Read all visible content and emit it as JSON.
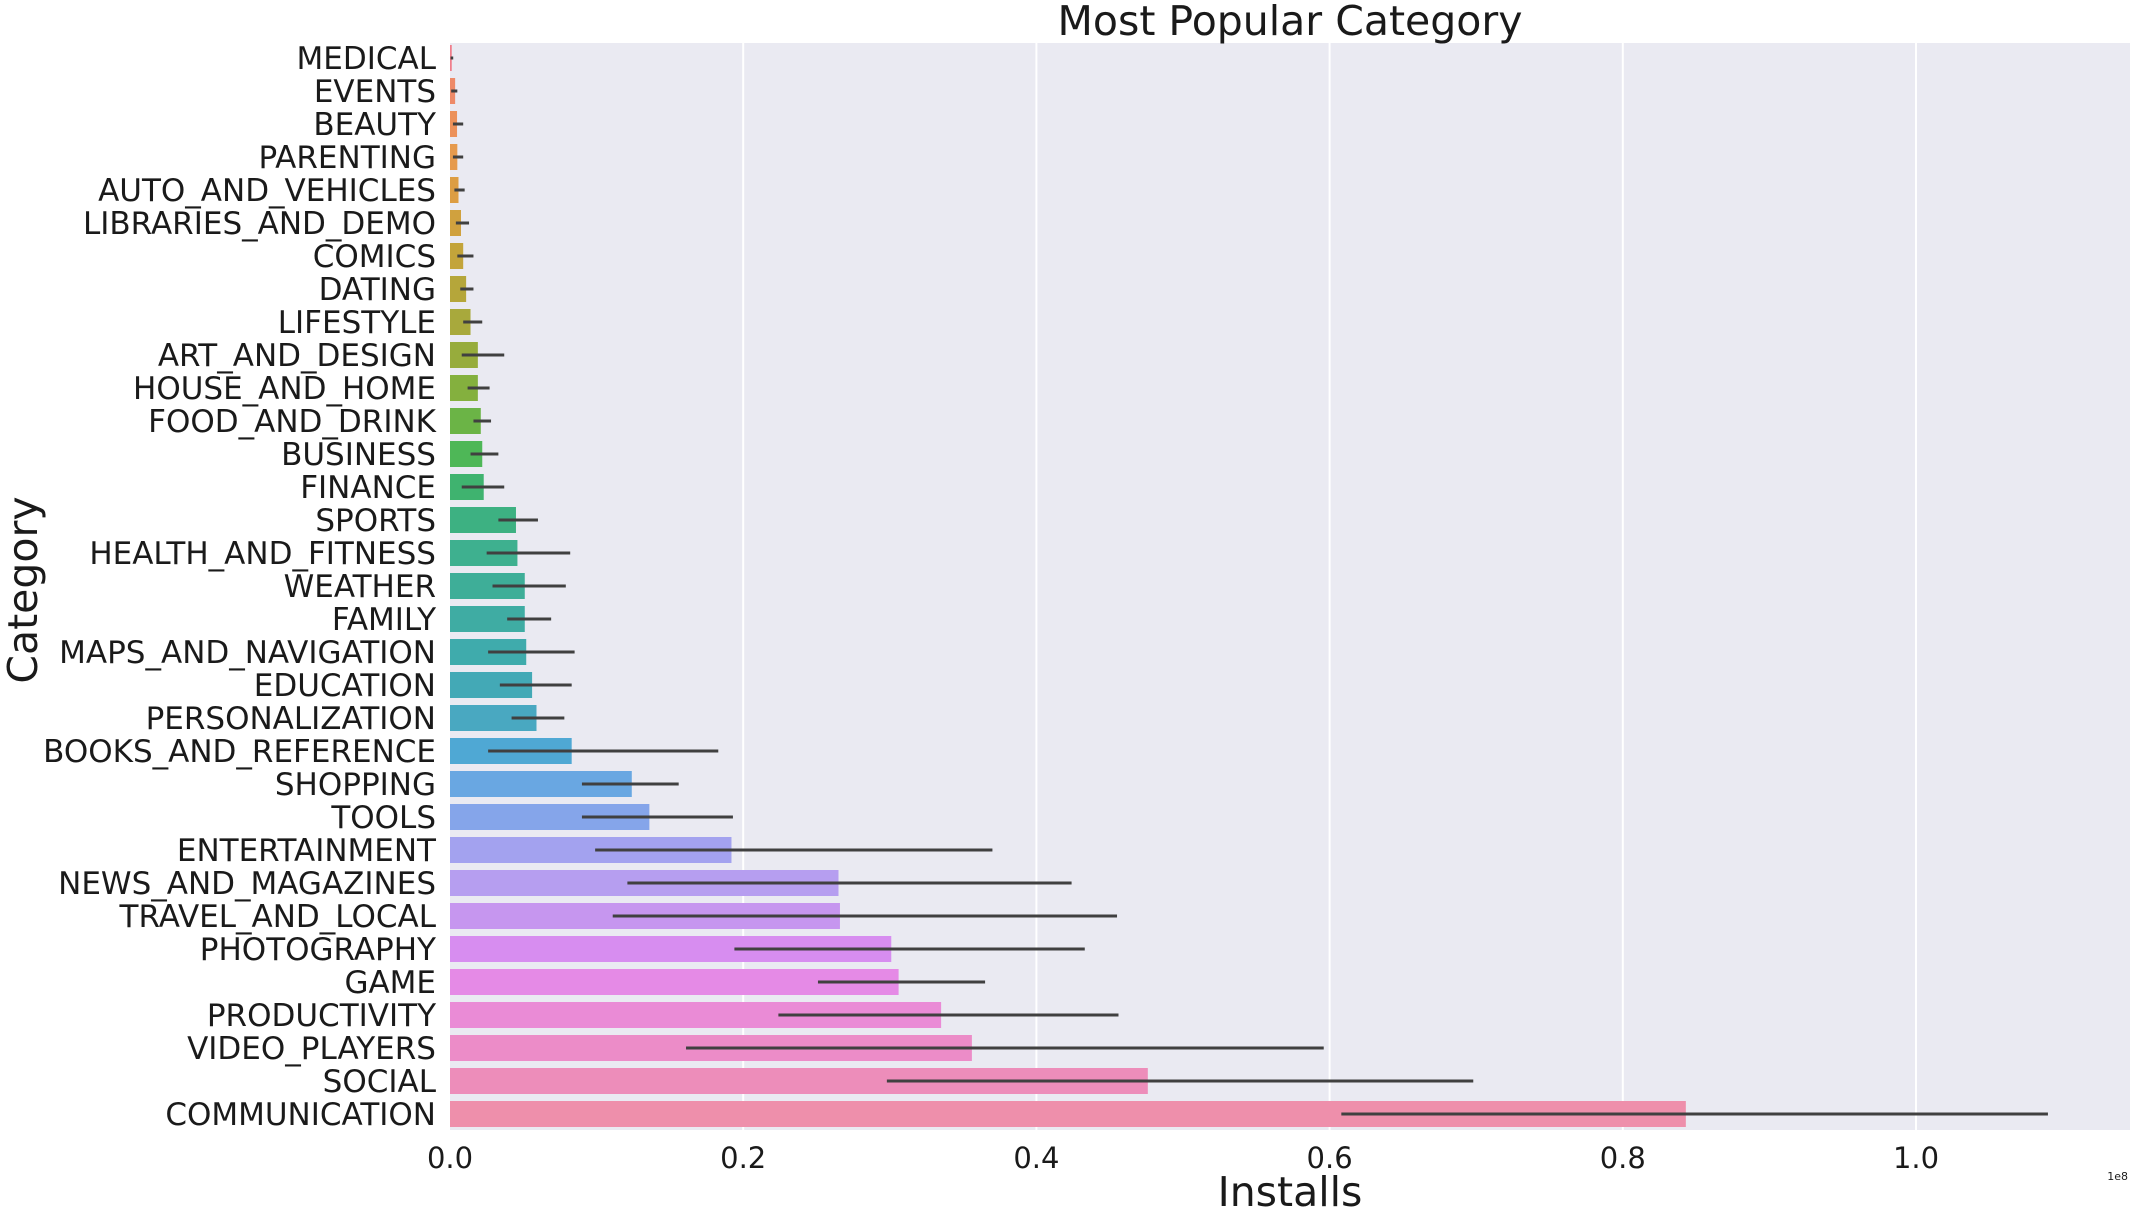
{
  "chart_data": {
    "type": "bar",
    "orientation": "horizontal",
    "title": "Most Popular Category",
    "xlabel": "Installs",
    "ylabel": "Category",
    "x_scale_note": "1e8",
    "xlim": [
      0,
      1.14
    ],
    "xticks": [
      0.0,
      0.2,
      0.4,
      0.6,
      0.8,
      1.0
    ],
    "xtick_labels": [
      "0.0",
      "0.2",
      "0.4",
      "0.6",
      "0.8",
      "1.0"
    ],
    "grid": true,
    "categories": [
      "MEDICAL",
      "EVENTS",
      "BEAUTY",
      "PARENTING",
      "AUTO_AND_VEHICLES",
      "LIBRARIES_AND_DEMO",
      "COMICS",
      "DATING",
      "LIFESTYLE",
      "ART_AND_DESIGN",
      "HOUSE_AND_HOME",
      "FOOD_AND_DRINK",
      "BUSINESS",
      "FINANCE",
      "SPORTS",
      "HEALTH_AND_FITNESS",
      "WEATHER",
      "FAMILY",
      "MAPS_AND_NAVIGATION",
      "EDUCATION",
      "PERSONALIZATION",
      "BOOKS_AND_REFERENCE",
      "SHOPPING",
      "TOOLS",
      "ENTERTAINMENT",
      "NEWS_AND_MAGAZINES",
      "TRAVEL_AND_LOCAL",
      "PHOTOGRAPHY",
      "GAME",
      "PRODUCTIVITY",
      "VIDEO_PLAYERS",
      "SOCIAL",
      "COMMUNICATION"
    ],
    "values": [
      0.0012,
      0.0035,
      0.0048,
      0.005,
      0.0058,
      0.0075,
      0.009,
      0.011,
      0.014,
      0.019,
      0.019,
      0.021,
      0.022,
      0.023,
      0.045,
      0.046,
      0.051,
      0.051,
      0.052,
      0.056,
      0.059,
      0.083,
      0.124,
      0.136,
      0.192,
      0.265,
      0.266,
      0.301,
      0.306,
      0.335,
      0.356,
      0.476,
      0.843
    ],
    "error_low": [
      0.0004,
      0.0008,
      0.002,
      0.002,
      0.003,
      0.004,
      0.005,
      0.007,
      0.009,
      0.008,
      0.012,
      0.016,
      0.014,
      0.008,
      0.033,
      0.025,
      0.029,
      0.039,
      0.026,
      0.034,
      0.042,
      0.026,
      0.09,
      0.09,
      0.099,
      0.121,
      0.111,
      0.194,
      0.251,
      0.224,
      0.161,
      0.298,
      0.608
    ],
    "error_high": [
      0.0022,
      0.005,
      0.009,
      0.009,
      0.01,
      0.013,
      0.016,
      0.016,
      0.022,
      0.037,
      0.027,
      0.028,
      0.033,
      0.037,
      0.06,
      0.082,
      0.079,
      0.069,
      0.085,
      0.083,
      0.078,
      0.183,
      0.156,
      0.193,
      0.37,
      0.424,
      0.455,
      0.433,
      0.365,
      0.456,
      0.596,
      0.698,
      1.09
    ],
    "colors": [
      "#f07e8c",
      "#ee8a68",
      "#ec915a",
      "#e69a4d",
      "#dd9d42",
      "#d0a13e",
      "#c3a43a",
      "#b5a63a",
      "#a8a93c",
      "#97ac3c",
      "#84b03e",
      "#6bb446",
      "#4eb757",
      "#3fb36f",
      "#3db182",
      "#3eb08f",
      "#3eae98",
      "#3faca3",
      "#3fabac",
      "#43a9b6",
      "#49a8c1",
      "#4fa8d4",
      "#69a7e2",
      "#85a5ea",
      "#a3a2ef",
      "#b69ef0",
      "#c696ef",
      "#d78df0",
      "#e58ae6",
      "#ea8bd6",
      "#ec8cc8",
      "#ed8dba",
      "#ee8fab"
    ],
    "plot_background": "#eaeaf2",
    "grid_color": "#ffffff",
    "errorbar_color": "#404040"
  }
}
